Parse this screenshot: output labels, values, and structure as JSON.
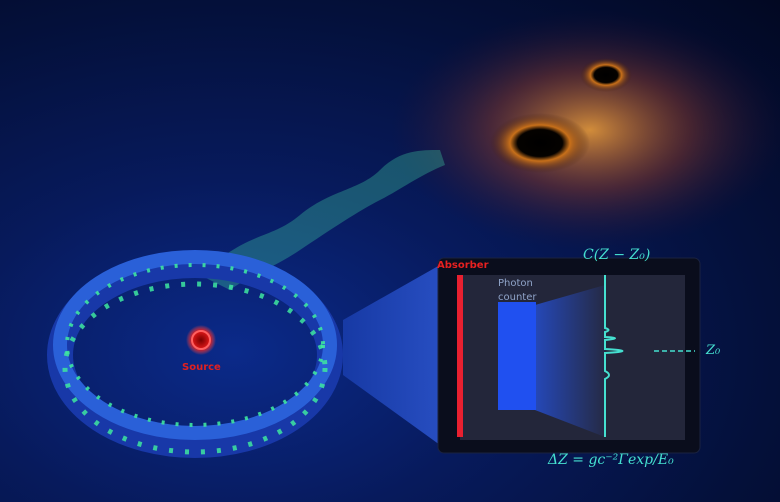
{
  "labels": {
    "source": "Source",
    "absorber": "Absorber",
    "photon_counter_line1": "Photon",
    "photon_counter_line2": "counter",
    "correlation": "C(Z − Z₀)",
    "z0": "Z₀",
    "delta_z": "ΔZ = gc⁻²Γexp/E₀"
  },
  "colors": {
    "background": "#04103a",
    "ring": "#1e50c8",
    "arrows": "#3ee6a0",
    "source": "#e01818",
    "absorber": "#e82030",
    "trace": "#45e0d0",
    "counter": "#2050f0"
  }
}
